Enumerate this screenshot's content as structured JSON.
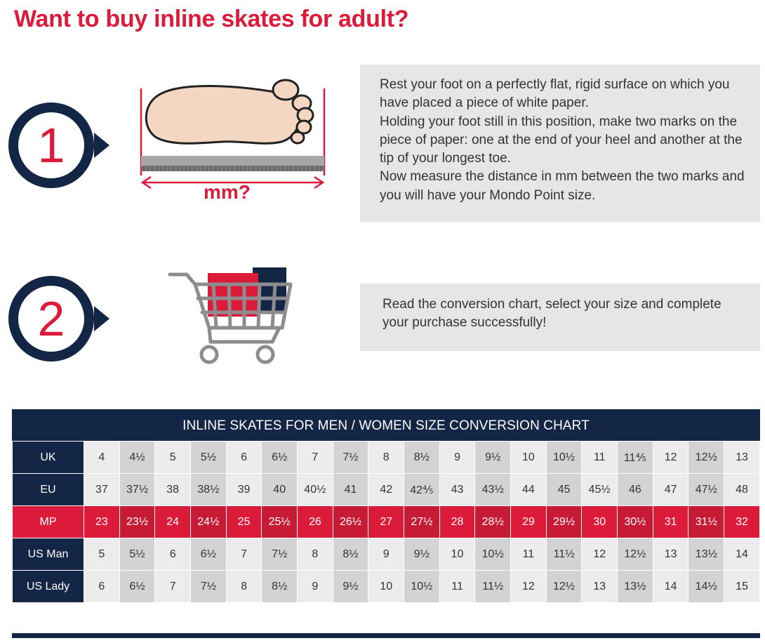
{
  "title": "Want to buy inline skates for adult?",
  "steps": [
    {
      "number": "1",
      "lines": [
        "Rest your foot on a perfectly flat, rigid surface on which you have placed a piece of white paper.",
        "Holding your foot still in this position, make two marks on the piece of paper: one at the end of your heel and another at the tip of your longest toe.",
        "Now measure the distance in mm between the two marks and you will have your Mondo Point size."
      ]
    },
    {
      "number": "2",
      "lines": [
        "Read the conversion chart, select your size and complete your purchase successfully!"
      ]
    }
  ],
  "measure_label": "mm?",
  "icons": [
    "foot-measure-icon",
    "shopping-cart-icon"
  ],
  "colors": {
    "red": "#dc1a3a",
    "navy": "#132646",
    "box_gray": "#e6e6e8"
  },
  "chart": {
    "title": "INLINE SKATES FOR MEN / WOMEN SIZE CONVERSION CHART",
    "rows": [
      {
        "label": "UK",
        "values": [
          "4",
          "4½",
          "5",
          "5½",
          "6",
          "6½",
          "7",
          "7½",
          "8",
          "8½",
          "9",
          "9½",
          "10",
          "10½",
          "11",
          "11⅘",
          "12",
          "12½",
          "13"
        ]
      },
      {
        "label": "EU",
        "values": [
          "37",
          "37½",
          "38",
          "38½",
          "39",
          "40",
          "40½",
          "41",
          "42",
          "42⅘",
          "43",
          "43½",
          "44",
          "45",
          "45½",
          "46",
          "47",
          "47½",
          "48"
        ]
      },
      {
        "label": "MP",
        "values": [
          "23",
          "23½",
          "24",
          "24½",
          "25",
          "25½",
          "26",
          "26½",
          "27",
          "27½",
          "28",
          "28½",
          "29",
          "29½",
          "30",
          "30½",
          "31",
          "31½",
          "32"
        ]
      },
      {
        "label": "US Man",
        "values": [
          "5",
          "5½",
          "6",
          "6½",
          "7",
          "7½",
          "8",
          "8½",
          "9",
          "9½",
          "10",
          "10½",
          "11",
          "11½",
          "12",
          "12½",
          "13",
          "13½",
          "14"
        ]
      },
      {
        "label": "US Lady",
        "values": [
          "6",
          "6½",
          "7",
          "7½",
          "8",
          "8½",
          "9",
          "9½",
          "10",
          "10½",
          "11",
          "11½",
          "12",
          "12½",
          "13",
          "13½",
          "14",
          "14½",
          "15"
        ]
      }
    ]
  }
}
